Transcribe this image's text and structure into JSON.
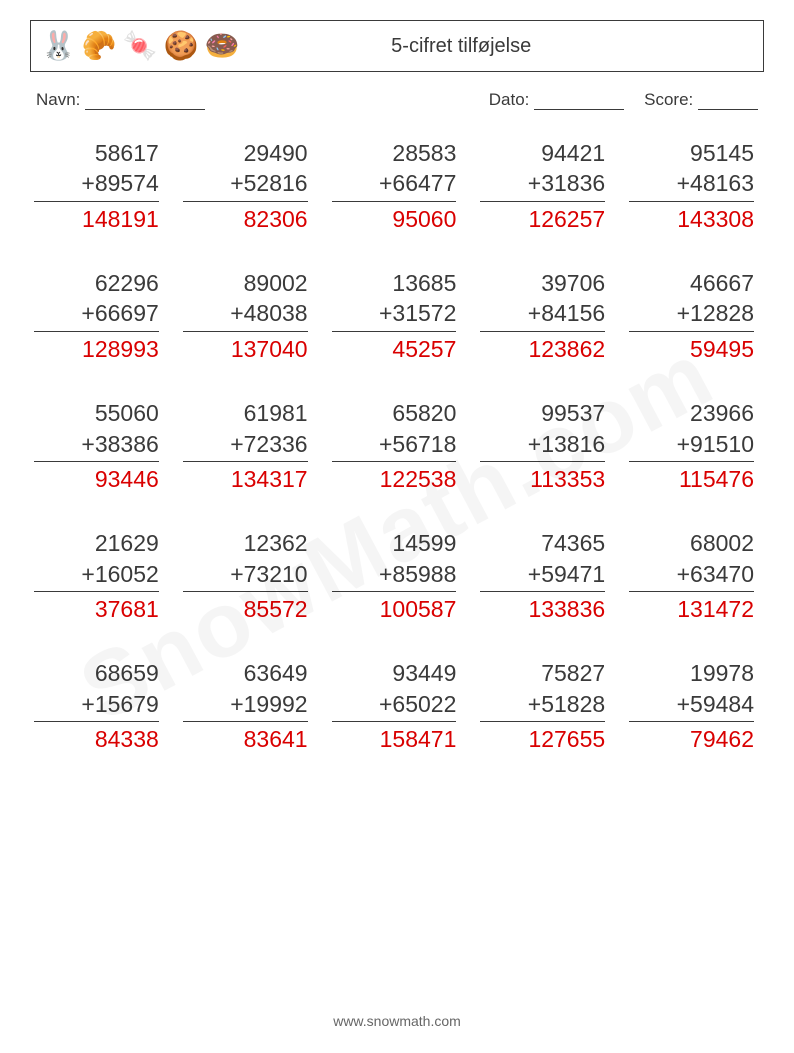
{
  "colors": {
    "text": "#3a3a3a",
    "answer": "#d90000",
    "rule": "#3a3a3a",
    "background": "#ffffff"
  },
  "icons": [
    {
      "name": "bunny-icon",
      "glyph": "🐰",
      "color": "#7a4a2a"
    },
    {
      "name": "croissant-icon",
      "glyph": "🥐",
      "color": "#d88a2a"
    },
    {
      "name": "candycane-icon",
      "glyph": "🍬",
      "color": "#d02a4a"
    },
    {
      "name": "macaron-icon",
      "glyph": "🍪",
      "color": "#6aa0d0"
    },
    {
      "name": "donut-icon",
      "glyph": "🍩",
      "color": "#e63a7a"
    }
  ],
  "header": {
    "title": "5-cifret tilføjelse"
  },
  "labels": {
    "name": "Navn:",
    "date": "Dato:",
    "score": "Score:"
  },
  "blanks": {
    "name_w": 120,
    "date_w": 90,
    "score_w": 60
  },
  "problems": [
    {
      "a": "58617",
      "b": "89574",
      "ans": "148191"
    },
    {
      "a": "29490",
      "b": "52816",
      "ans": "82306"
    },
    {
      "a": "28583",
      "b": "66477",
      "ans": "95060"
    },
    {
      "a": "94421",
      "b": "31836",
      "ans": "126257"
    },
    {
      "a": "95145",
      "b": "48163",
      "ans": "143308"
    },
    {
      "a": "62296",
      "b": "66697",
      "ans": "128993"
    },
    {
      "a": "89002",
      "b": "48038",
      "ans": "137040"
    },
    {
      "a": "13685",
      "b": "31572",
      "ans": "45257"
    },
    {
      "a": "39706",
      "b": "84156",
      "ans": "123862"
    },
    {
      "a": "46667",
      "b": "12828",
      "ans": "59495"
    },
    {
      "a": "55060",
      "b": "38386",
      "ans": "93446"
    },
    {
      "a": "61981",
      "b": "72336",
      "ans": "134317"
    },
    {
      "a": "65820",
      "b": "56718",
      "ans": "122538"
    },
    {
      "a": "99537",
      "b": "13816",
      "ans": "113353"
    },
    {
      "a": "23966",
      "b": "91510",
      "ans": "115476"
    },
    {
      "a": "21629",
      "b": "16052",
      "ans": "37681"
    },
    {
      "a": "12362",
      "b": "73210",
      "ans": "85572"
    },
    {
      "a": "14599",
      "b": "85988",
      "ans": "100587"
    },
    {
      "a": "74365",
      "b": "59471",
      "ans": "133836"
    },
    {
      "a": "68002",
      "b": "63470",
      "ans": "131472"
    },
    {
      "a": "68659",
      "b": "15679",
      "ans": "84338"
    },
    {
      "a": "63649",
      "b": "19992",
      "ans": "83641"
    },
    {
      "a": "93449",
      "b": "65022",
      "ans": "158471"
    },
    {
      "a": "75827",
      "b": "51828",
      "ans": "127655"
    },
    {
      "a": "19978",
      "b": "59484",
      "ans": "79462"
    }
  ],
  "footer": {
    "text": "www.snowmath.com"
  },
  "watermark": {
    "text": "SnowMath.com"
  }
}
